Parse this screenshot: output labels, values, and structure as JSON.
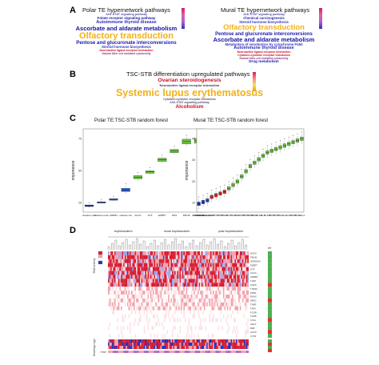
{
  "panelA": {
    "letter": "A",
    "polar": {
      "title": "Polar TE hypernetwork pathways",
      "words": [
        {
          "text": "JAK-STAT signaling pathway",
          "color": "#5555aa",
          "size": 3.8
        },
        {
          "text": "Folate receptor signaling pathway",
          "color": "#1a1aa0",
          "size": 4.5
        },
        {
          "text": "Autoimmune thyroid disease",
          "color": "#2b2bc0",
          "size": 5.5
        },
        {
          "text": "Ascorbate and aldarate metabolism",
          "color": "#1414a0",
          "size": 7.5
        },
        {
          "text": "Olfactory transduction",
          "color": "#f2b216",
          "size": 11
        },
        {
          "text": "Pentose and glucuronate interconversions",
          "color": "#1a1ab0",
          "size": 6.2
        },
        {
          "text": "Steroid hormone biosynthesis",
          "color": "#3434c0",
          "size": 4.3
        },
        {
          "text": "Neuroactive ligand-receptor interaction",
          "color": "#cc1122",
          "size": 3.6
        },
        {
          "text": "Natural killer cell mediated cytotoxicity",
          "color": "#8a3a8a",
          "size": 3.3
        }
      ]
    },
    "mural": {
      "title": "Mural TE hypernetwork pathways",
      "words": [
        {
          "text": "JAK-STAT signaling pathway",
          "color": "#5555aa",
          "size": 3.8
        },
        {
          "text": "Chemical carcinogenesis",
          "color": "#2a2ab0",
          "size": 4.3
        },
        {
          "text": "Steroid hormone biosynthesis",
          "color": "#3434c0",
          "size": 4.3
        },
        {
          "text": "Olfactory transduction",
          "color": "#f2b216",
          "size": 9.5
        },
        {
          "text": "Pentose and glucuronate interconversions",
          "color": "#1a1ab0",
          "size": 6
        },
        {
          "text": "Ascorbate and aldarate metabolism",
          "color": "#1414a0",
          "size": 7.5
        },
        {
          "text": "Metabolism of xenobiotics by cytochrome P450",
          "color": "#3434c0",
          "size": 4.3
        },
        {
          "text": "Autoimmune thyroid disease",
          "color": "#2b2bc0",
          "size": 5.5
        },
        {
          "text": "Neuroactive ligand-receptor interaction",
          "color": "#cc1122",
          "size": 3.6
        },
        {
          "text": "Cytokine-cytokine receptor interaction",
          "color": "#cc1122",
          "size": 3.6
        },
        {
          "text": "Natural killer cell mediated cytotoxicity",
          "color": "#8a3a8a",
          "size": 3.3
        },
        {
          "text": "Drug metabolism",
          "color": "#1a1aa0",
          "size": 4.6
        }
      ]
    }
  },
  "panelB": {
    "letter": "B",
    "title": "TSC-STB differentiation upregulated pathways",
    "words": [
      {
        "text": "Ovarian steroidogenesis",
        "color": "#cc1122",
        "size": 6.8
      },
      {
        "text": "Neuroactive ligand-receptor interaction",
        "color": "#333366",
        "size": 4
      },
      {
        "text": "Systemic lupus erythematosus",
        "color": "#f2b216",
        "size": 12.5
      },
      {
        "text": "Cytokine-cytokine receptor interaction",
        "color": "#555577",
        "size": 3.6
      },
      {
        "text": "JAK-STAT signaling pathway",
        "color": "#555577",
        "size": 3.6
      },
      {
        "text": "Alcoholism",
        "color": "#cc1122",
        "size": 6.5
      }
    ]
  },
  "panelC": {
    "letter": "C",
    "polar": {
      "title": "Polar TE:TSC-STB random forest",
      "ylabel": "Importance",
      "yticks": [
        "75",
        "50",
        "25"
      ],
      "categories": [
        "shadow max",
        "shadow mean",
        "ARRB1",
        "shadow min",
        "ACCA",
        "GTF",
        "EZBP7",
        "NOS",
        "FBL45",
        "HSPD0A3"
      ],
      "boxes": [
        {
          "median": 4,
          "q1": 3,
          "q3": 5,
          "lo": 2,
          "hi": 6,
          "color": "#1f3fbf"
        },
        {
          "median": 8,
          "q1": 7.5,
          "q3": 9,
          "lo": 7,
          "hi": 10,
          "color": "#2a4fd6"
        },
        {
          "median": 12,
          "q1": 11,
          "q3": 13,
          "lo": 10,
          "hi": 14,
          "color": "#3a6ee8"
        },
        {
          "median": 24,
          "q1": 22,
          "q3": 26,
          "lo": 20,
          "hi": 30,
          "color": "#2660e0"
        },
        {
          "median": 40,
          "q1": 38,
          "q3": 42,
          "lo": 36,
          "hi": 44,
          "color": "#6ccc3a"
        },
        {
          "median": 47,
          "q1": 45,
          "q3": 48,
          "lo": 44,
          "hi": 50,
          "color": "#6ccc3a"
        },
        {
          "median": 62,
          "q1": 60,
          "q3": 64,
          "lo": 58,
          "hi": 66,
          "color": "#6ccc3a"
        },
        {
          "median": 73,
          "q1": 71,
          "q3": 75,
          "lo": 69,
          "hi": 77,
          "color": "#6ccc3a"
        },
        {
          "median": 85,
          "q1": 82,
          "q3": 88,
          "lo": 79,
          "hi": 91,
          "color": "#6ccc3a"
        },
        {
          "median": 86,
          "q1": 83,
          "q3": 89,
          "lo": 80,
          "hi": 93,
          "color": "#6ccc3a"
        }
      ]
    },
    "mural": {
      "title": "Mural TE:TSC-STB random forest",
      "ylabel": "Importance",
      "yticks": [
        "40",
        "30",
        "20",
        "10"
      ],
      "categories": [
        "shadow max",
        "shadow mean",
        "shadow min",
        "FOA7",
        "CYP2",
        "OPD7",
        "FSDM",
        "ACOX",
        "TLR8",
        "DEP",
        "FGFR",
        "TNFSF",
        "TRPM",
        "PDR1",
        "PCSK",
        "HLA",
        "RUNX",
        "NR3C",
        "TNFR",
        "TAFA",
        "HLA",
        "FCGR",
        "TGFB",
        "CXCL",
        "CELA"
      ],
      "boxes": [
        {
          "median": 3,
          "q1": 2,
          "q3": 4,
          "color": "#1f3fbf"
        },
        {
          "median": 4,
          "q1": 3,
          "q3": 5,
          "color": "#1f3fbf"
        },
        {
          "median": 5,
          "q1": 4,
          "q3": 6,
          "color": "#2a4fd6"
        },
        {
          "median": 7,
          "q1": 6,
          "q3": 8,
          "color": "#d83030"
        },
        {
          "median": 8,
          "q1": 7,
          "q3": 9,
          "color": "#d83030"
        },
        {
          "median": 9,
          "q1": 8,
          "q3": 10,
          "color": "#d83030"
        },
        {
          "median": 10,
          "q1": 9,
          "q3": 11,
          "color": "#d83030"
        },
        {
          "median": 12,
          "q1": 11,
          "q3": 13,
          "color": "#6ccc3a"
        },
        {
          "median": 14,
          "q1": 13,
          "q3": 15,
          "color": "#6ccc3a"
        },
        {
          "median": 16,
          "q1": 15,
          "q3": 17,
          "color": "#6ccc3a"
        },
        {
          "median": 19,
          "q1": 18,
          "q3": 20,
          "color": "#6ccc3a"
        },
        {
          "median": 22,
          "q1": 21,
          "q3": 23,
          "color": "#6ccc3a"
        },
        {
          "median": 25,
          "q1": 24,
          "q3": 26,
          "color": "#6ccc3a"
        },
        {
          "median": 27,
          "q1": 26,
          "q3": 28,
          "color": "#6ccc3a"
        },
        {
          "median": 29,
          "q1": 28,
          "q3": 30,
          "color": "#6ccc3a"
        },
        {
          "median": 31,
          "q1": 30,
          "q3": 32,
          "color": "#6ccc3a"
        },
        {
          "median": 33,
          "q1": 32,
          "q3": 34,
          "color": "#6ccc3a"
        },
        {
          "median": 34,
          "q1": 33,
          "q3": 35,
          "color": "#6ccc3a"
        },
        {
          "median": 35,
          "q1": 34,
          "q3": 36,
          "color": "#6ccc3a"
        },
        {
          "median": 36,
          "q1": 35,
          "q3": 37,
          "color": "#6ccc3a"
        },
        {
          "median": 37,
          "q1": 36,
          "q3": 38,
          "color": "#6ccc3a"
        },
        {
          "median": 38,
          "q1": 37,
          "q3": 39,
          "color": "#6ccc3a"
        },
        {
          "median": 39,
          "q1": 38,
          "q3": 40,
          "color": "#6ccc3a"
        },
        {
          "median": 40,
          "q1": 39,
          "q3": 41,
          "color": "#6ccc3a"
        },
        {
          "median": 41,
          "q1": 40,
          "q3": 42,
          "color": "#6ccc3a"
        }
      ]
    }
  },
  "panelD": {
    "letter": "D",
    "groups": [
      "trophectoderm",
      "mural trophectoderm",
      "polar trophectoderm"
    ],
    "side_labels": [
      "RNA velocity",
      "Biodesign sign"
    ],
    "rowLabels": [
      "NOS3",
      "FBL45",
      "HSPD0A3",
      "EZBP7",
      "GTF",
      "ACCA",
      "ARRB1",
      "TLR8",
      "FGFR",
      "TNFSF",
      "PDR1",
      "RUNX",
      "NR3C",
      "TNFR",
      "TAFA",
      "FCGR",
      "TGFB",
      "CXCL",
      "CELA",
      "DEP",
      "ACOX",
      "CYP2"
    ],
    "right_header": "ref",
    "right_colors": [
      "#4caf50",
      "#4caf50",
      "#4caf50",
      "#4caf50",
      "#4caf50",
      "#4caf50",
      "#4caf50",
      "#4caf50",
      "#e83030",
      "#4caf50",
      "#4caf50",
      "#4caf50",
      "#e83030",
      "#4caf50",
      "#4caf50",
      "#4caf50",
      "#4caf50",
      "#e83030",
      "#4caf50",
      "#4caf50",
      "#e83030",
      "#4caf50"
    ],
    "bottom_label": "stage",
    "colors": {
      "high": "#d81b30",
      "mid": "#ffffff",
      "low": "#2030c8",
      "annotation_pink": "#f2a0b8",
      "annotation_purple": "#a070c8"
    }
  }
}
